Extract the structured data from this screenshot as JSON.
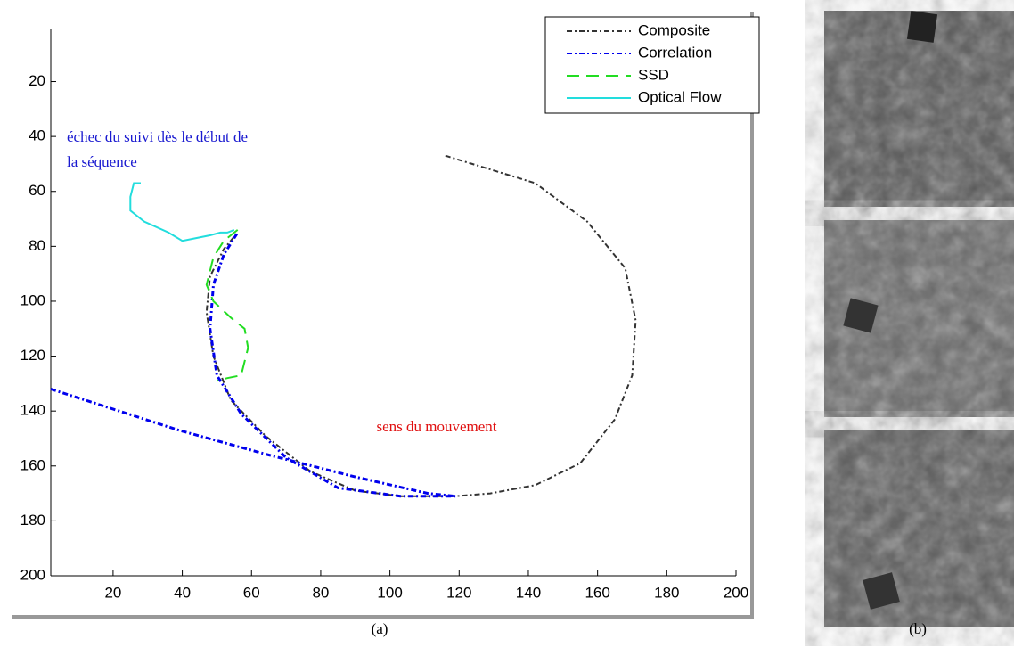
{
  "chart_data": {
    "type": "line",
    "legend_position": "upper right",
    "y_direction": "reverse",
    "xlim": [
      2,
      200
    ],
    "xticks": [
      20,
      40,
      60,
      80,
      100,
      120,
      140,
      160,
      180,
      200
    ],
    "ylim": [
      1,
      200
    ],
    "yticks": [
      20,
      40,
      60,
      80,
      100,
      120,
      140,
      160,
      180,
      200
    ],
    "series": [
      {
        "name": "Composite",
        "color": "#333333",
        "linestyle": "dash-dot",
        "x": [
          116,
          142,
          157,
          168,
          171,
          170,
          165,
          155,
          142,
          129,
          119,
          103,
          90,
          77,
          64,
          54,
          49,
          47,
          48,
          52,
          56
        ],
        "values": [
          47,
          57,
          71,
          88,
          107,
          127,
          143,
          159,
          167,
          170,
          171,
          171,
          169,
          162,
          149,
          136,
          120,
          104,
          91,
          81,
          75
        ]
      },
      {
        "name": "Correlation",
        "color": "#0000ee",
        "linestyle": "dash-dot",
        "x": [
          2,
          39,
          65,
          90,
          111,
          119,
          103,
          85,
          70,
          57,
          50,
          48,
          49,
          52,
          56
        ],
        "values": [
          132,
          147,
          156,
          164,
          170,
          171,
          171,
          168,
          157,
          141,
          127,
          110,
          94,
          83,
          75
        ]
      },
      {
        "name": "SSD",
        "color": "#22dd22",
        "linestyle": "dashed",
        "x": [
          56,
          52,
          49,
          47,
          49,
          54,
          58,
          59,
          57,
          53,
          50
        ],
        "values": [
          74,
          78,
          84,
          94,
          100,
          106,
          110,
          117,
          127,
          128,
          129
        ]
      },
      {
        "name": "Optical Flow",
        "color": "#22dddd",
        "linestyle": "solid",
        "x": [
          28,
          26,
          25,
          25,
          29,
          36,
          40,
          44,
          48,
          51,
          53,
          55
        ],
        "values": [
          57,
          57,
          62,
          67,
          71,
          75,
          78,
          77,
          76,
          75,
          75,
          74
        ]
      }
    ],
    "annotations": [
      {
        "lines": [
          "échec du suivi dès le début de",
          "la séquence"
        ],
        "color": "#1a1ad0"
      },
      {
        "lines": [
          "sens du mouvement"
        ],
        "color": "#e01010"
      }
    ]
  },
  "captions": [
    "(a)",
    "(b)"
  ]
}
